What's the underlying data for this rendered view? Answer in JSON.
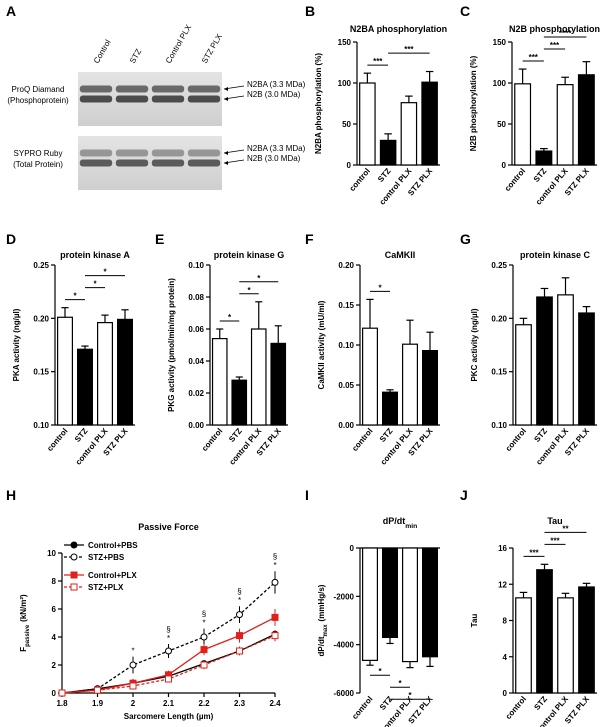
{
  "panel_a": {
    "panel": "A",
    "lanes": [
      "Control",
      "STZ",
      "Control PLX",
      "STZ PLX"
    ],
    "blots": [
      {
        "stain": "ProQ Diamand",
        "detail": "(Phosphoprotein)",
        "bands": [
          "N2BA (3.3 MDa)",
          "N2B (3.0 MDa)"
        ]
      },
      {
        "stain": "SYPRO Ruby",
        "detail": "(Total Protein)",
        "bands": [
          "N2BA (3.3 MDa)",
          "N2B (3.0 MDa)"
        ]
      }
    ]
  },
  "chart_data": [
    {
      "type": "bar",
      "panel": "B",
      "title": "N2BA phosphorylation",
      "ylabel": "N2BA phosphorylation (%)",
      "categories": [
        "control",
        "STZ",
        "control PLX",
        "STZ PLX"
      ],
      "values": [
        100,
        30,
        76,
        101
      ],
      "errors": [
        12,
        8,
        8,
        13
      ],
      "colors": [
        "#ffffff",
        "#000000",
        "#ffffff",
        "#000000"
      ],
      "ylim": [
        0,
        150
      ],
      "yticks": [
        0,
        50,
        100,
        150
      ],
      "significance": [
        {
          "bars": [
            0,
            1
          ],
          "label": "***"
        },
        {
          "bars": [
            1,
            3
          ],
          "label": "***"
        }
      ]
    },
    {
      "type": "bar",
      "panel": "C",
      "title": "N2B phosphorylation",
      "ylabel": "N2B phosphorylation (%)",
      "categories": [
        "control",
        "STZ",
        "control PLX",
        "STZ PLX"
      ],
      "values": [
        99,
        17,
        98,
        110
      ],
      "errors": [
        18,
        3,
        9,
        16
      ],
      "colors": [
        "#ffffff",
        "#000000",
        "#ffffff",
        "#000000"
      ],
      "ylim": [
        0,
        150
      ],
      "yticks": [
        0,
        50,
        100,
        150
      ],
      "significance": [
        {
          "bars": [
            0,
            1
          ],
          "label": "***"
        },
        {
          "bars": [
            1,
            2
          ],
          "label": "***"
        },
        {
          "bars": [
            1,
            3
          ],
          "label": "****"
        }
      ]
    },
    {
      "type": "bar",
      "panel": "D",
      "title": "protein kinase A",
      "ylabel": "PKA activity (ng/µl)",
      "categories": [
        "control",
        "STZ",
        "control PLX",
        "STZ PLX"
      ],
      "values": [
        0.201,
        0.171,
        0.196,
        0.199
      ],
      "errors": [
        0.009,
        0.003,
        0.007,
        0.009
      ],
      "colors": [
        "#ffffff",
        "#000000",
        "#ffffff",
        "#000000"
      ],
      "ylim": [
        0.1,
        0.25
      ],
      "yticks": [
        {
          "value": 0.1,
          "label": "0.10"
        },
        0.15,
        {
          "value": 0.2,
          "label": "0.20"
        },
        0.25
      ],
      "significance": [
        {
          "bars": [
            0,
            1
          ],
          "label": "*"
        },
        {
          "bars": [
            1,
            2
          ],
          "label": "*"
        },
        {
          "bars": [
            1,
            3
          ],
          "label": "*"
        }
      ]
    },
    {
      "type": "bar",
      "panel": "E",
      "title": "protein kinase G",
      "ylabel": "PKG activity (pmol/min/mg protein)",
      "categories": [
        "control",
        "STZ",
        "control PLX",
        "STZ PLX"
      ],
      "values": [
        0.054,
        0.028,
        0.06,
        0.051
      ],
      "errors": [
        0.006,
        0.002,
        0.017,
        0.011
      ],
      "colors": [
        "#ffffff",
        "#000000",
        "#ffffff",
        "#000000"
      ],
      "ylim": [
        0,
        0.1
      ],
      "yticks": [
        {
          "value": 0,
          "label": "0.00"
        },
        0.02,
        0.04,
        0.06,
        0.08,
        {
          "value": 0.1,
          "label": "0.10"
        }
      ],
      "significance": [
        {
          "bars": [
            0,
            1
          ],
          "label": "*"
        },
        {
          "bars": [
            1,
            2
          ],
          "label": "*"
        },
        {
          "bars": [
            1,
            3
          ],
          "label": "*"
        }
      ]
    },
    {
      "type": "bar",
      "panel": "F",
      "title": "CaMKII",
      "ylabel": "CaMKII activity (mU/ml)",
      "categories": [
        "control",
        "STZ",
        "control PLX",
        "STZ PLX"
      ],
      "values": [
        0.121,
        0.041,
        0.101,
        0.093
      ],
      "errors": [
        0.036,
        0.003,
        0.03,
        0.023
      ],
      "colors": [
        "#ffffff",
        "#000000",
        "#ffffff",
        "#000000"
      ],
      "ylim": [
        0,
        0.2
      ],
      "yticks": [
        {
          "value": 0,
          "label": "0.00"
        },
        0.05,
        {
          "value": 0.1,
          "label": "0.10"
        },
        0.15,
        {
          "value": 0.2,
          "label": "0.20"
        }
      ],
      "significance": [
        {
          "bars": [
            0,
            1
          ],
          "label": "*"
        }
      ]
    },
    {
      "type": "bar",
      "panel": "G",
      "title": "protein kinase C",
      "ylabel": "PKC activity (ng/µl)",
      "categories": [
        "control",
        "STZ",
        "control PLX",
        "STZ PLX"
      ],
      "values": [
        0.194,
        0.22,
        0.222,
        0.205
      ],
      "errors": [
        0.006,
        0.008,
        0.016,
        0.006
      ],
      "colors": [
        "#ffffff",
        "#000000",
        "#ffffff",
        "#000000"
      ],
      "ylim": [
        0.1,
        0.25
      ],
      "yticks": [
        {
          "value": 0.1,
          "label": "0.10"
        },
        0.15,
        {
          "value": 0.2,
          "label": "0.20"
        },
        0.25
      ],
      "significance": []
    },
    {
      "type": "line",
      "panel": "H",
      "title": "Passive Force",
      "ylabel": "F",
      "ylabel_sub": "passive",
      "ylabel_unit": "(kN/m²)",
      "xlabel": "Sarcomere Length (µm)",
      "x": [
        1.8,
        1.9,
        2.0,
        2.1,
        2.2,
        2.3,
        2.4
      ],
      "series": [
        {
          "name": "Control+PBS",
          "color": "#000000",
          "marker": "circle",
          "filled": true,
          "dashed": false,
          "values": [
            0,
            0.3,
            0.7,
            1.2,
            2.1,
            3.0,
            4.2
          ],
          "errors": [
            0,
            0.1,
            0.2,
            0.2,
            0.2,
            0.3,
            0.3
          ]
        },
        {
          "name": "STZ+PBS",
          "color": "#000000",
          "marker": "circle",
          "filled": false,
          "dashed": true,
          "values": [
            0,
            0.3,
            2.0,
            3.0,
            4.0,
            5.6,
            7.9
          ],
          "errors": [
            0,
            0.2,
            0.6,
            0.5,
            0.6,
            0.6,
            0.8
          ]
        },
        {
          "name": "Control+PLX",
          "color": "#e0201b",
          "marker": "square",
          "filled": true,
          "dashed": false,
          "values": [
            0,
            0.2,
            0.7,
            1.3,
            3.1,
            4.1,
            5.4
          ],
          "errors": [
            0,
            0.1,
            0.3,
            0.3,
            0.4,
            0.5,
            0.6
          ]
        },
        {
          "name": "STZ+PLX",
          "color": "#e0201b",
          "marker": "square",
          "filled": false,
          "dashed": true,
          "values": [
            0,
            0.2,
            0.5,
            1.0,
            2.0,
            3.0,
            4.1
          ],
          "errors": [
            0,
            0.1,
            0.2,
            0.2,
            0.3,
            0.3,
            0.4
          ]
        }
      ],
      "annotations": [
        {
          "x": 2.0,
          "labels": [
            "*"
          ]
        },
        {
          "x": 2.1,
          "labels": [
            "§",
            "*"
          ]
        },
        {
          "x": 2.2,
          "labels": [
            "§",
            "*"
          ]
        },
        {
          "x": 2.3,
          "labels": [
            "§",
            "*"
          ]
        },
        {
          "x": 2.4,
          "labels": [
            "§",
            "*"
          ]
        }
      ],
      "xlim": [
        1.8,
        2.4
      ],
      "xticks": [
        1.8,
        1.9,
        2.0,
        2.1,
        2.2,
        2.3,
        2.4
      ],
      "ylim": [
        0,
        10
      ],
      "yticks": [
        0,
        2,
        4,
        6,
        8,
        10
      ],
      "legend": "upper left"
    },
    {
      "type": "bar",
      "panel": "I",
      "title": "dP/dt",
      "title_sub": "min",
      "ylabel": "dP/dt",
      "ylabel_sub": "max",
      "ylabel_unit": "(mmHg/s)",
      "categories": [
        "control",
        "STZ",
        "control PLX",
        "STZ PLX"
      ],
      "values": [
        -4650,
        -3700,
        -4700,
        -4500
      ],
      "errors": [
        200,
        250,
        250,
        400
      ],
      "colors": [
        "#ffffff",
        "#000000",
        "#ffffff",
        "#000000"
      ],
      "ylim": [
        -6000,
        0
      ],
      "yticks": [
        0,
        -2000,
        -4000,
        -6000
      ],
      "significance": [
        {
          "bars": [
            0,
            1
          ],
          "label": "*"
        },
        {
          "bars": [
            1,
            2
          ],
          "label": "*"
        },
        {
          "bars": [
            1,
            3
          ],
          "label": "*"
        }
      ]
    },
    {
      "type": "bar",
      "panel": "J",
      "title": "Tau",
      "ylabel": "Tau",
      "categories": [
        "control",
        "STZ",
        "control PLX",
        "STZ PLX"
      ],
      "values": [
        10.5,
        13.6,
        10.5,
        11.7
      ],
      "errors": [
        0.6,
        0.6,
        0.5,
        0.4
      ],
      "colors": [
        "#ffffff",
        "#000000",
        "#ffffff",
        "#000000"
      ],
      "ylim": [
        0,
        16
      ],
      "yticks": [
        0,
        4,
        8,
        12,
        16
      ],
      "significance": [
        {
          "bars": [
            0,
            1
          ],
          "label": "***"
        },
        {
          "bars": [
            1,
            2
          ],
          "label": "***"
        },
        {
          "bars": [
            1,
            3
          ],
          "label": "**"
        }
      ]
    }
  ]
}
